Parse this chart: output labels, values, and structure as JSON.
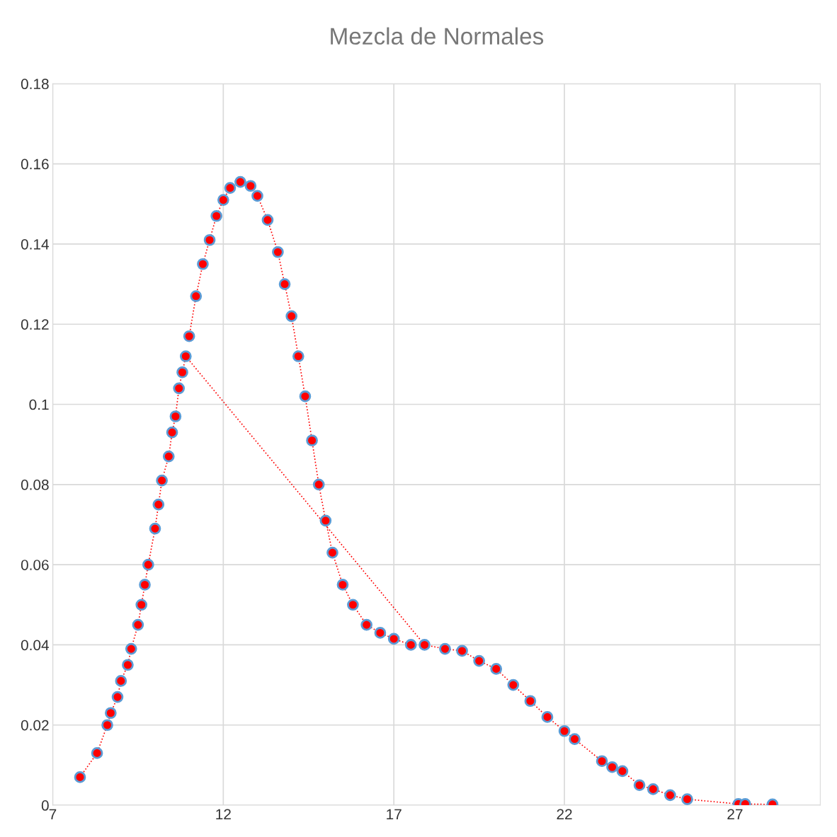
{
  "chart_data": {
    "type": "line",
    "title": "Mezcla de Normales",
    "xlim": [
      7,
      29.5
    ],
    "xticks": [
      7,
      12,
      17,
      22,
      27
    ],
    "ylim": [
      0,
      0.18
    ],
    "yticks": [
      0,
      0.02,
      0.04,
      0.06,
      0.08,
      0.1,
      0.12,
      0.14,
      0.16,
      0.18
    ],
    "grid": true,
    "marker": "circle",
    "line_style": "dotted",
    "series": [
      {
        "color": "#ff0000",
        "x": [
          7.8,
          8.3,
          8.6,
          8.7,
          8.9,
          9.0,
          9.2,
          9.3,
          9.5,
          9.6,
          9.7,
          9.8,
          10.0,
          10.1,
          10.2,
          10.4,
          10.5,
          10.6,
          10.7,
          10.8,
          10.9,
          17.9,
          18.5,
          19.0,
          19.5,
          20.0,
          20.5,
          21.0,
          21.5,
          22.0,
          22.3,
          23.1,
          23.4,
          23.7,
          24.2,
          24.6,
          25.1,
          25.6,
          27.1,
          27.3,
          28.1
        ],
        "values": [
          0.007,
          0.013,
          0.02,
          0.023,
          0.027,
          0.031,
          0.035,
          0.039,
          0.045,
          0.05,
          0.055,
          0.06,
          0.069,
          0.075,
          0.081,
          0.087,
          0.093,
          0.097,
          0.104,
          0.108,
          0.112,
          0.04,
          0.039,
          0.0385,
          0.036,
          0.034,
          0.03,
          0.026,
          0.022,
          0.0185,
          0.0165,
          0.011,
          0.0095,
          0.0085,
          0.005,
          0.004,
          0.0025,
          0.0015,
          0.0003,
          0.0003,
          0.0002
        ]
      },
      {
        "color": "#ff0000",
        "x": [
          11.0,
          11.2,
          11.4,
          11.6,
          11.8,
          12.0,
          12.2,
          12.5,
          12.8,
          13.0,
          13.3,
          13.6,
          13.8,
          14.0,
          14.2,
          14.4,
          14.6,
          14.8,
          15.0,
          15.2,
          15.5,
          15.8,
          16.2,
          16.6,
          17.0,
          17.5
        ],
        "values": [
          0.117,
          0.127,
          0.135,
          0.141,
          0.147,
          0.151,
          0.154,
          0.1555,
          0.1545,
          0.152,
          0.146,
          0.138,
          0.13,
          0.122,
          0.112,
          0.102,
          0.091,
          0.08,
          0.071,
          0.063,
          0.055,
          0.05,
          0.045,
          0.043,
          0.0415,
          0.04
        ]
      }
    ]
  }
}
